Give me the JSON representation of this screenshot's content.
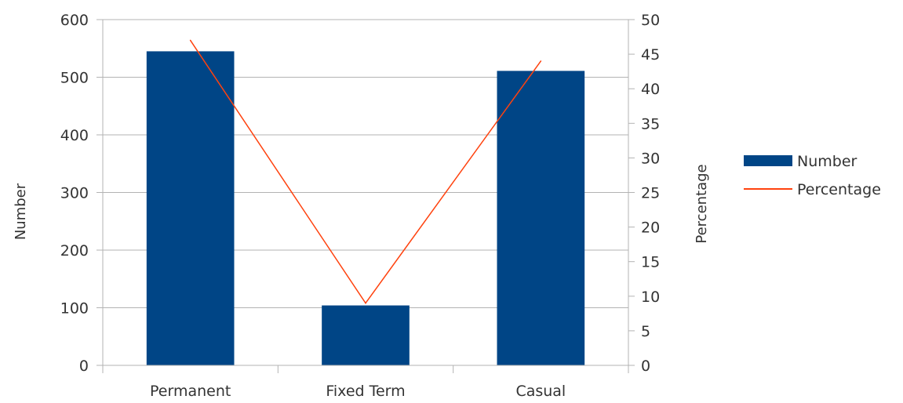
{
  "chart_data": {
    "type": "bar",
    "categories": [
      "Permanent",
      "Fixed Term",
      "Casual"
    ],
    "series": [
      {
        "name": "Number",
        "type": "bar",
        "axis": "left",
        "values": [
          545,
          104,
          511
        ],
        "color": "#004586"
      },
      {
        "name": "Percentage",
        "type": "line",
        "axis": "right",
        "values": [
          47,
          9,
          44
        ],
        "color": "#ff420e"
      }
    ],
    "ylabel": "Number",
    "ylabel_right": "Percentage",
    "ylim": [
      0,
      600
    ],
    "ylim_right": [
      0,
      50
    ],
    "yticks": [
      "0",
      "100",
      "200",
      "300",
      "400",
      "500",
      "600"
    ],
    "yticks_right": [
      "0",
      "5",
      "10",
      "15",
      "20",
      "25",
      "30",
      "35",
      "40",
      "45",
      "50"
    ],
    "grid": true,
    "legend": "right"
  }
}
